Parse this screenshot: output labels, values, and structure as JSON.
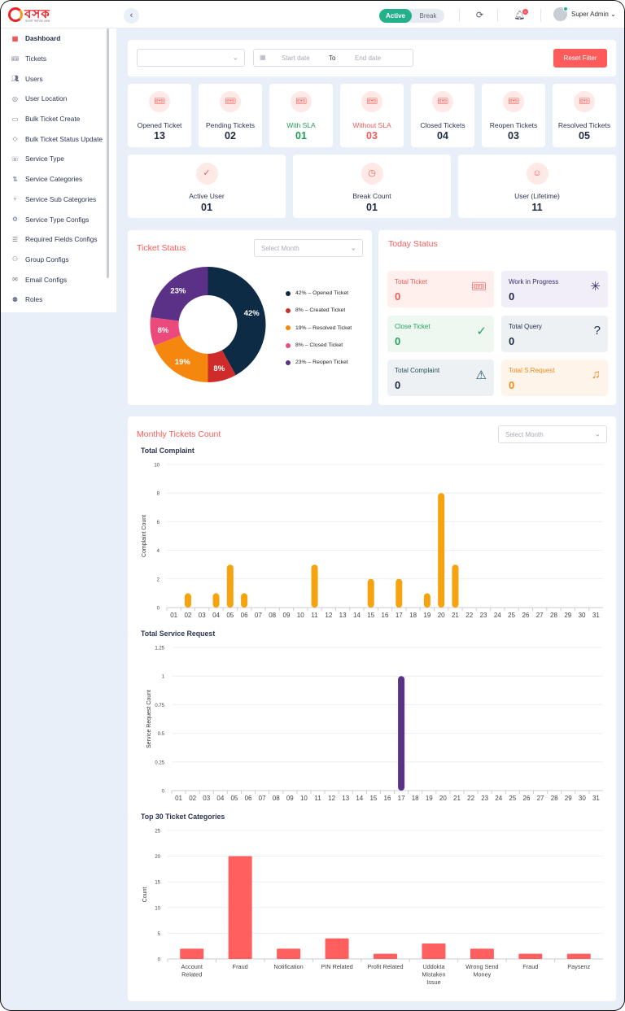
{
  "header": {
    "logo_text": "বসক",
    "logo_subtext": "ব্যবসা সহায়ক কেন্দ্র",
    "collapse_icon": "chevron-left-icon",
    "status_active": "Active",
    "status_break": "Break",
    "refresh_icon": "refresh-icon",
    "notification_icon": "bell-icon",
    "notification_count": "0",
    "user_name": "Super Admin",
    "user_chevron": "⌄"
  },
  "sidebar": {
    "items": [
      {
        "label": "Dashboard",
        "icon": "grid-icon",
        "active": true
      },
      {
        "label": "Tickets",
        "icon": "ticket-icon"
      },
      {
        "label": "Users",
        "icon": "users-icon"
      },
      {
        "label": "User Location",
        "icon": "location-pin-icon"
      },
      {
        "label": "Bulk Ticket Create",
        "icon": "bulk-ticket-icon"
      },
      {
        "label": "Bulk Ticket Status Update",
        "icon": "tag-icon"
      },
      {
        "label": "Service Type",
        "icon": "phone-icon"
      },
      {
        "label": "Service Categories",
        "icon": "swap-icon"
      },
      {
        "label": "Service Sub Categories",
        "icon": "branch-icon"
      },
      {
        "label": "Service Type Configs",
        "icon": "gear-icon"
      },
      {
        "label": "Required Fields Configs",
        "icon": "sliders-icon"
      },
      {
        "label": "Group Configs",
        "icon": "group-icon"
      },
      {
        "label": "Email Configs",
        "icon": "mail-icon"
      },
      {
        "label": "Roles",
        "icon": "role-icon"
      }
    ]
  },
  "filter": {
    "select_value": "",
    "start_placeholder": "Start date",
    "to_label": "To",
    "end_placeholder": "End date",
    "reset_label": "Reset Filter"
  },
  "stats": [
    {
      "label": "Opened Ticket",
      "value": "13",
      "color": "#2a3550"
    },
    {
      "label": "Pending Tickets",
      "value": "02",
      "color": "#2a3550"
    },
    {
      "label": "With SLA",
      "value": "01",
      "color": "#1f9d55"
    },
    {
      "label": "Without SLA",
      "value": "03",
      "color": "#ef5a5a"
    },
    {
      "label": "Closed Tickets",
      "value": "04",
      "color": "#2a3550"
    },
    {
      "label": "Reopen Tickets",
      "value": "03",
      "color": "#2a3550"
    },
    {
      "label": "Resolved Tickets",
      "value": "05",
      "color": "#2a3550"
    }
  ],
  "stats2": [
    {
      "label": "Active User",
      "value": "01",
      "icon": "user-check-icon"
    },
    {
      "label": "Break Count",
      "value": "01",
      "icon": "clock-icon"
    },
    {
      "label": "User (Lifetime)",
      "value": "11",
      "icon": "user-icon"
    }
  ],
  "ticket_status": {
    "title": "Ticket Status",
    "select_placeholder": "Select Month"
  },
  "today_status": {
    "title": "Today Status",
    "tiles": [
      {
        "label": "Total Ticket",
        "value": "0",
        "icon": "ticket-icon",
        "bg": "#fff0ee",
        "fg": "#ef5a5a",
        "vfg": "#ef5a5a"
      },
      {
        "label": "Work in Progress",
        "value": "0",
        "icon": "loader-icon",
        "bg": "#f1eef8",
        "fg": "#3a2a6a",
        "vfg": "#1f2a44"
      },
      {
        "label": "Close Ticket",
        "value": "0",
        "icon": "check-circle-icon",
        "bg": "#eef8f1",
        "fg": "#23a05a",
        "vfg": "#23a05a"
      },
      {
        "label": "Total Query",
        "value": "0",
        "icon": "help-circle-icon",
        "bg": "#eef1f4",
        "fg": "#1f2a44",
        "vfg": "#1f2a44"
      },
      {
        "label": "Total Complaint",
        "value": "0",
        "icon": "warning-icon",
        "bg": "#eef1f4",
        "fg": "#1f4f5a",
        "vfg": "#1f2a44"
      },
      {
        "label": "Total S.Request",
        "value": "0",
        "icon": "headphones-icon",
        "bg": "#fff4ea",
        "fg": "#f08a1a",
        "vfg": "#f08a1a"
      }
    ]
  },
  "monthly": {
    "title": "Monthly Tickets Count",
    "select_placeholder": "Select Month"
  },
  "chart_data": [
    {
      "type": "pie",
      "title": "Ticket Status",
      "donut": true,
      "slices": [
        {
          "label": "42% – Opened Ticket",
          "value": 42,
          "pct_label": "42%",
          "color": "#0d2b45"
        },
        {
          "label": "8% – Created Ticket",
          "value": 8,
          "pct_label": "8%",
          "color": "#d02b2b"
        },
        {
          "label": "19% – Resolved Ticket",
          "value": 19,
          "pct_label": "19%",
          "color": "#f5870e"
        },
        {
          "label": "8% – Closed Ticket",
          "value": 8,
          "pct_label": "8%",
          "color": "#ec4a7d"
        },
        {
          "label": "23% – Reopen Ticket",
          "value": 23,
          "pct_label": "23%",
          "color": "#5a3187"
        }
      ]
    },
    {
      "type": "bar",
      "title": "Total Complaint",
      "ylabel": "Complaint Count",
      "ylim": [
        0,
        10
      ],
      "yticks": [
        "0",
        "2",
        "4",
        "6",
        "8",
        "10"
      ],
      "color": "#f5a30e",
      "categories": [
        "01",
        "02",
        "03",
        "04",
        "05",
        "06",
        "07",
        "08",
        "09",
        "10",
        "11",
        "12",
        "13",
        "14",
        "15",
        "16",
        "17",
        "18",
        "19",
        "20",
        "21",
        "22",
        "23",
        "24",
        "25",
        "26",
        "27",
        "28",
        "29",
        "30",
        "31"
      ],
      "values": [
        0,
        1,
        0,
        1,
        3,
        1,
        0,
        0,
        0,
        0,
        3,
        0,
        0,
        0,
        2,
        0,
        2,
        0,
        1,
        8,
        3,
        0,
        0,
        0,
        0,
        0,
        0,
        0,
        0,
        0,
        0
      ]
    },
    {
      "type": "bar",
      "title": "Total Service Request",
      "ylabel": "Service Request Count",
      "ylim": [
        0,
        1.25
      ],
      "yticks": [
        "0",
        "0.25",
        "0.5",
        "0.75",
        "1",
        "1.25"
      ],
      "color": "#5a3187",
      "categories": [
        "01",
        "02",
        "03",
        "04",
        "05",
        "06",
        "07",
        "08",
        "09",
        "10",
        "11",
        "12",
        "13",
        "14",
        "15",
        "16",
        "17",
        "18",
        "19",
        "20",
        "21",
        "22",
        "23",
        "24",
        "25",
        "26",
        "27",
        "28",
        "29",
        "30",
        "31"
      ],
      "values": [
        0,
        0,
        0,
        0,
        0,
        0,
        0,
        0,
        0,
        0,
        0,
        0,
        0,
        0,
        0,
        0,
        1,
        0,
        0,
        0,
        0,
        0,
        0,
        0,
        0,
        0,
        0,
        0,
        0,
        0,
        0
      ]
    },
    {
      "type": "bar",
      "title": "Top 30 Ticket Categories",
      "ylabel": "Count",
      "ylim": [
        0,
        25
      ],
      "yticks": [
        "0",
        "5",
        "10",
        "15",
        "20",
        "25"
      ],
      "color": "#ff5f5f",
      "categories": [
        [
          "Account",
          "Related"
        ],
        [
          "Fraud"
        ],
        [
          "Notification"
        ],
        [
          "PIN Related"
        ],
        [
          "Profit Related"
        ],
        [
          "Uddokta",
          "Mistaken",
          "Issue"
        ],
        [
          "Wrong Send",
          "Money"
        ],
        [
          "Fraud"
        ],
        [
          "Paysenz"
        ]
      ],
      "values": [
        2,
        20,
        2,
        4,
        1,
        3,
        2,
        1,
        1
      ]
    }
  ]
}
